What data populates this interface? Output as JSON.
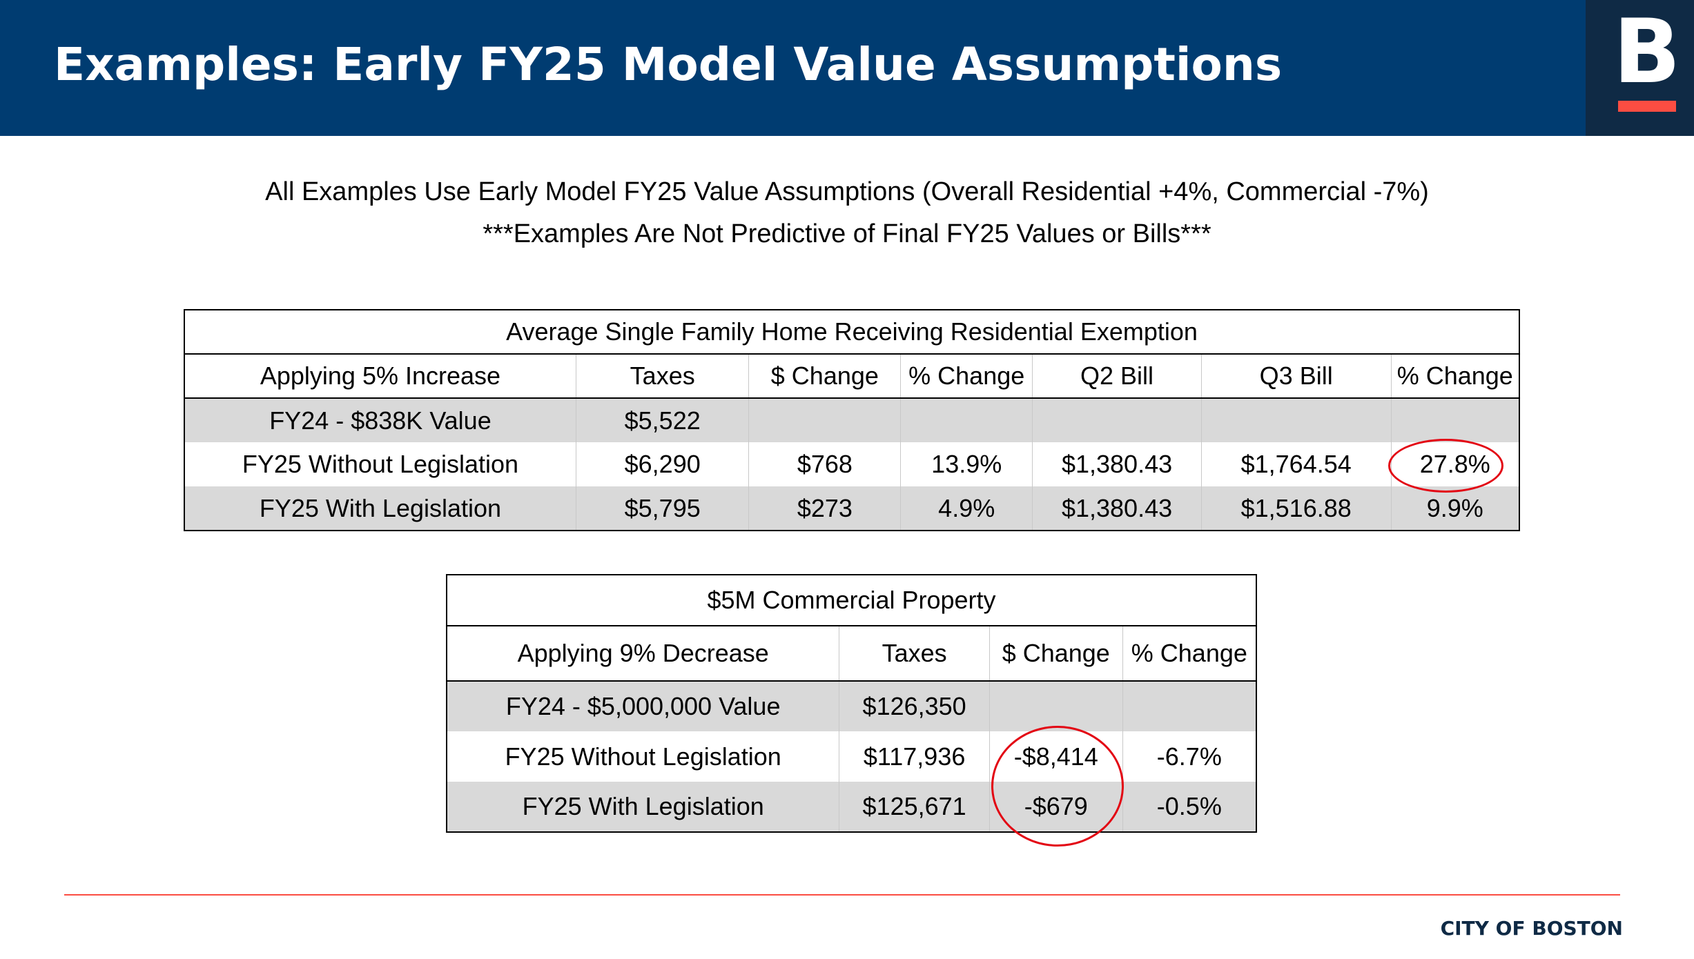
{
  "header": {
    "title": "Examples: Early FY25 Model Value Assumptions",
    "logo_letter": "B",
    "background_color": "#003C71",
    "logo_background_color": "#0F2A45",
    "accent_color": "#FB4D42"
  },
  "subtitle": {
    "line1": "All Examples Use Early Model FY25 Value Assumptions (Overall Residential +4%, Commercial -7%)",
    "line2": "***Examples Are Not Predictive of Final FY25 Values or Bills***"
  },
  "table1": {
    "title": "Average Single Family Home Receiving Residential Exemption",
    "headers": [
      "Applying 5% Increase",
      "Taxes",
      "$ Change",
      "% Change",
      "Q2 Bill",
      "Q3 Bill",
      "% Change"
    ],
    "rows": [
      [
        "FY24 - $838K Value",
        "$5,522",
        "",
        "",
        "",
        "",
        ""
      ],
      [
        "FY25 Without Legislation",
        "$6,290",
        "$768",
        "13.9%",
        "$1,380.43",
        "$1,764.54",
        "27.8%"
      ],
      [
        "FY25 With Legislation",
        "$5,795",
        "$273",
        "4.9%",
        "$1,380.43",
        "$1,516.88",
        "9.9%"
      ]
    ]
  },
  "table2": {
    "title": "$5M Commercial Property",
    "headers": [
      "Applying 9% Decrease",
      "Taxes",
      "$ Change",
      "% Change"
    ],
    "rows": [
      [
        "FY24 - $5,000,000 Value",
        "$126,350",
        "",
        ""
      ],
      [
        "FY25 Without Legislation",
        "$117,936",
        "-$8,414",
        "-6.7%"
      ],
      [
        "FY25 With Legislation",
        "$125,671",
        "-$679",
        "-0.5%"
      ]
    ]
  },
  "highlight_color": "#E30613",
  "footer": {
    "label": "CITY OF BOSTON"
  }
}
